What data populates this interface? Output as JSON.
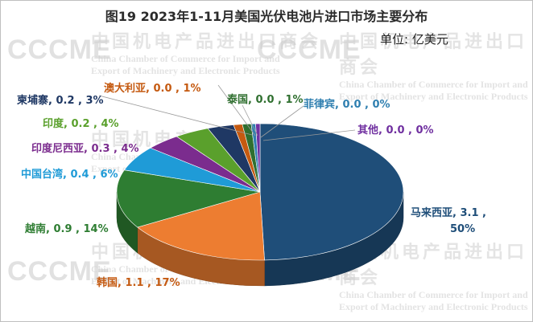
{
  "title": "图19   2023年1-11月美国光伏电池片进口市场主要分布",
  "unit_label": "单位:  亿美元",
  "watermark": {
    "logo": "CCCME",
    "cn": "中国机电产品进出口商会",
    "en_line1": "China Chamber of Commerce for Import and",
    "en_line2": "Export of Machinery and Electronic Products"
  },
  "chart_data": {
    "type": "pie",
    "style": "3d",
    "categories": [
      "马来西亚",
      "韩国",
      "越南",
      "中国台湾",
      "印度尼西亚",
      "印度",
      "柬埔寨",
      "澳大利亚",
      "泰国",
      "菲律宾",
      "其他"
    ],
    "values": [
      3.1,
      1.1,
      0.9,
      0.4,
      0.3,
      0.2,
      0.2,
      0.0,
      0.0,
      0.0,
      0.0
    ],
    "percent_labels": [
      "50%",
      "17%",
      "14%",
      "6%",
      "4%",
      "4%",
      "3%",
      "1%",
      "1%",
      "0%",
      "0%"
    ],
    "value_labels": [
      "3.1",
      "1.1",
      "0.9",
      "0.4",
      "0.3",
      "0.2",
      "0.2",
      "0.0",
      "0.0",
      "0.0",
      "0.0"
    ],
    "labels": [
      "马来西亚, 3.1 ,",
      "韩国, 1.1 , 17%",
      "越南, 0.9 , 14%",
      "中国台湾, 0.4 , 6%",
      "印度尼西亚, 0.3 , 4%",
      "印度, 0.2 , 4%",
      "柬埔寨, 0.2 , 3%",
      "澳大利亚, 0.0 , 1%",
      "泰国, 0.0 , 1%",
      "菲律宾, 0.0 , 0%",
      "其他, 0.0 , 0%"
    ],
    "label_line2": [
      "50%",
      "",
      "",
      "",
      "",
      "",
      "",
      "",
      "",
      "",
      ""
    ],
    "colors": [
      "#1f4e79",
      "#ed7d31",
      "#2e7d32",
      "#1f9bd7",
      "#7b2c8e",
      "#5aa02c",
      "#1f3864",
      "#c55a11",
      "#2f6f2f",
      "#2f7fb0",
      "#7030a0"
    ],
    "label_colors": [
      "#1f4e79",
      "#c55a11",
      "#2e7d32",
      "#1f9bd7",
      "#7b2c8e",
      "#5aa02c",
      "#1f3864",
      "#c55a11",
      "#2f6f2f",
      "#2f7fb0",
      "#7030a0"
    ],
    "legend": "none"
  }
}
